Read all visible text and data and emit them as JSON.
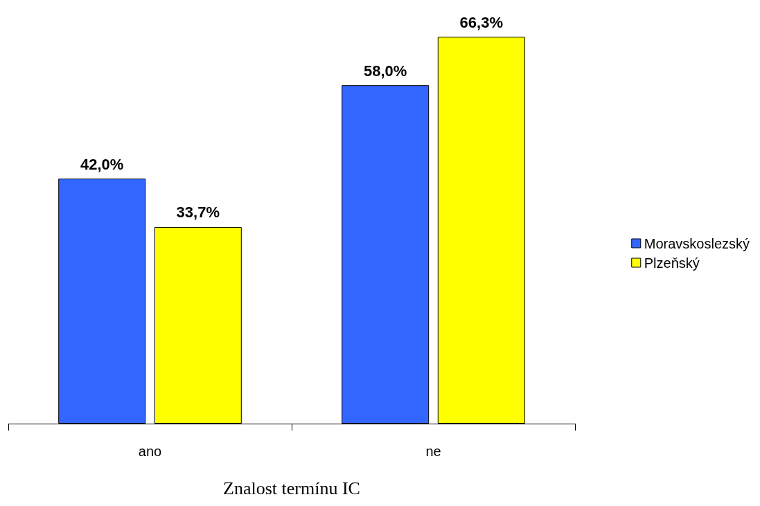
{
  "chart_data": {
    "type": "bar",
    "xlabel": "Znalost termínu IC",
    "categories": [
      "ano",
      "ne"
    ],
    "series": [
      {
        "name": "Moravskoslezský",
        "color": "#3366ff",
        "values": [
          42.0,
          58.0
        ],
        "value_labels": [
          "42,0%",
          "58,0%"
        ]
      },
      {
        "name": "Plzeňský",
        "color": "#ffff00",
        "values": [
          33.7,
          66.3
        ],
        "value_labels": [
          "33,7%",
          "66,3%"
        ]
      }
    ],
    "legend": "right"
  }
}
